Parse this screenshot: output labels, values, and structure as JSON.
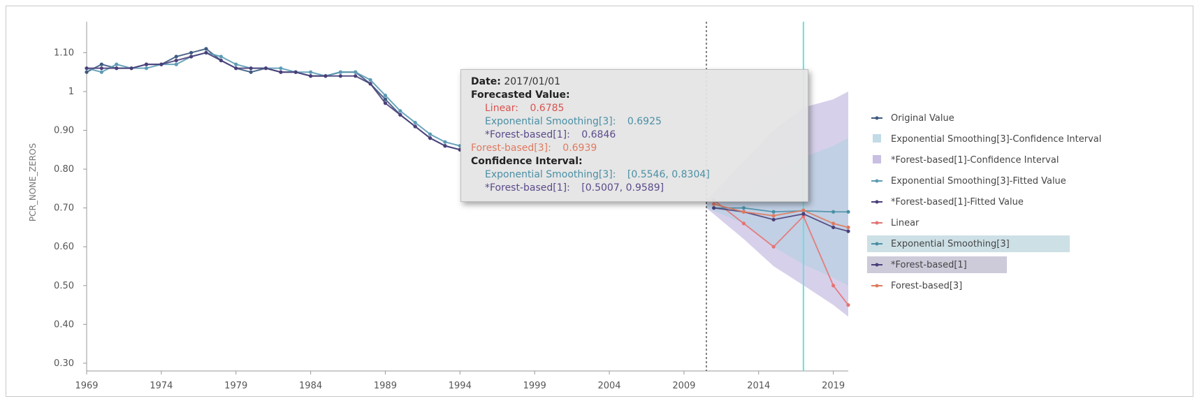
{
  "colors": {
    "original": "#3d5a80",
    "es_fitted": "#5b9bb5",
    "fb_fitted": "#4a3f7a",
    "linear": "#e57373",
    "es_forecast": "#4a8fa5",
    "fb1_forecast": "#4a3f7a",
    "fb3_forecast": "#e07a5f",
    "es_ci": "#aecfdf",
    "fb_ci": "#b7a9d9",
    "vline_dashed": "#333333",
    "vline_cyan": "#66e0e0"
  },
  "chart_data": {
    "type": "line",
    "xlabel": "",
    "ylabel": "PCR_NONE_ZEROS",
    "xlim": [
      1969,
      2020
    ],
    "ylim": [
      0.28,
      1.18
    ],
    "x_ticks": [
      "1969",
      "1974",
      "1979",
      "1984",
      "1989",
      "1994",
      "1999",
      "2004",
      "2009",
      "2014",
      "2019"
    ],
    "y_ticks": [
      "0.30",
      "0.40",
      "0.50",
      "0.60",
      "0.70",
      "0.80",
      "0.90",
      "1",
      "1.10"
    ],
    "forecast_start_year": 2010.5,
    "highlight_year": 2017,
    "series": [
      {
        "name": "Original Value",
        "key": "original",
        "x": [
          1969,
          1970,
          1971,
          1972,
          1973,
          1974,
          1975,
          1976,
          1977,
          1978,
          1979,
          1980,
          1981,
          1982,
          1983,
          1984,
          1985,
          1986,
          1987,
          1988,
          1989,
          1990,
          1991,
          1992,
          1993,
          1994
        ],
        "y": [
          1.05,
          1.07,
          1.06,
          1.06,
          1.07,
          1.07,
          1.09,
          1.1,
          1.11,
          1.08,
          1.06,
          1.05,
          1.06,
          1.05,
          1.05,
          1.04,
          1.04,
          1.05,
          1.05,
          1.02,
          0.98,
          0.94,
          0.91,
          0.88,
          0.86,
          0.85
        ]
      },
      {
        "name": "Exponential Smoothing[3]-Fitted Value",
        "key": "es_fitted",
        "x": [
          1969,
          1970,
          1971,
          1972,
          1973,
          1974,
          1975,
          1976,
          1977,
          1978,
          1979,
          1980,
          1981,
          1982,
          1983,
          1984,
          1985,
          1986,
          1987,
          1988,
          1989,
          1990,
          1991,
          1992,
          1993,
          1994
        ],
        "y": [
          1.06,
          1.05,
          1.07,
          1.06,
          1.06,
          1.07,
          1.07,
          1.09,
          1.1,
          1.09,
          1.07,
          1.06,
          1.06,
          1.06,
          1.05,
          1.05,
          1.04,
          1.05,
          1.05,
          1.03,
          0.99,
          0.95,
          0.92,
          0.89,
          0.87,
          0.86
        ]
      },
      {
        "name": "*Forest-based[1]-Fitted Value",
        "key": "fb_fitted",
        "x": [
          1969,
          1970,
          1971,
          1972,
          1973,
          1974,
          1975,
          1976,
          1977,
          1978,
          1979,
          1980,
          1981,
          1982,
          1983,
          1984,
          1985,
          1986,
          1987,
          1988,
          1989,
          1990,
          1991,
          1992,
          1993,
          1994
        ],
        "y": [
          1.06,
          1.06,
          1.06,
          1.06,
          1.07,
          1.07,
          1.08,
          1.09,
          1.1,
          1.08,
          1.06,
          1.06,
          1.06,
          1.05,
          1.05,
          1.04,
          1.04,
          1.04,
          1.04,
          1.02,
          0.97,
          0.94,
          0.91,
          0.88,
          0.86,
          0.85
        ]
      },
      {
        "name": "Linear",
        "key": "linear",
        "x": [
          2011,
          2013,
          2015,
          2017,
          2019,
          2020
        ],
        "y": [
          0.72,
          0.66,
          0.6,
          0.6785,
          0.5,
          0.45
        ]
      },
      {
        "name": "Exponential Smoothing[3]",
        "key": "es_forecast",
        "x": [
          2011,
          2013,
          2015,
          2017,
          2019,
          2020
        ],
        "y": [
          0.7,
          0.7,
          0.69,
          0.6925,
          0.69,
          0.69
        ]
      },
      {
        "name": "*Forest-based[1]",
        "key": "fb1_forecast",
        "x": [
          2011,
          2013,
          2015,
          2017,
          2019,
          2020
        ],
        "y": [
          0.7,
          0.69,
          0.67,
          0.6846,
          0.65,
          0.64
        ]
      },
      {
        "name": "Forest-based[3]",
        "key": "fb3_forecast",
        "x": [
          2011,
          2013,
          2015,
          2017,
          2019,
          2020
        ],
        "y": [
          0.71,
          0.69,
          0.68,
          0.6939,
          0.66,
          0.65
        ]
      }
    ],
    "intervals": [
      {
        "name": "*Forest-based[1]-Confidence Interval",
        "key": "fb_ci",
        "x": [
          2010.5,
          2013,
          2015,
          2017,
          2019,
          2020
        ],
        "lower": [
          0.7,
          0.62,
          0.55,
          0.5007,
          0.45,
          0.42
        ],
        "upper": [
          0.72,
          0.82,
          0.9,
          0.9589,
          0.98,
          1.0
        ]
      },
      {
        "name": "Exponential Smoothing[3]-Confidence Interval",
        "key": "es_ci",
        "x": [
          2010.5,
          2013,
          2015,
          2017,
          2019,
          2020
        ],
        "lower": [
          0.7,
          0.66,
          0.6,
          0.5546,
          0.52,
          0.5
        ],
        "upper": [
          0.71,
          0.74,
          0.79,
          0.8304,
          0.86,
          0.88
        ]
      }
    ],
    "legend": [
      {
        "label": "Original Value",
        "key": "original",
        "style": "line"
      },
      {
        "label": "Exponential Smoothing[3]-Confidence Interval",
        "key": "es_ci",
        "style": "box"
      },
      {
        "label": "*Forest-based[1]-Confidence Interval",
        "key": "fb_ci",
        "style": "box"
      },
      {
        "label": "Exponential Smoothing[3]-Fitted Value",
        "key": "es_fitted",
        "style": "line"
      },
      {
        "label": "*Forest-based[1]-Fitted Value",
        "key": "fb_fitted",
        "style": "line"
      },
      {
        "label": "Linear",
        "key": "linear",
        "style": "line"
      },
      {
        "label": "Exponential Smoothing[3]",
        "key": "es_forecast",
        "style": "line",
        "highlight": true
      },
      {
        "label": "*Forest-based[1]",
        "key": "fb1_forecast",
        "style": "line",
        "highlight": true
      },
      {
        "label": "Forest-based[3]",
        "key": "fb3_forecast",
        "style": "line"
      }
    ]
  },
  "tooltip": {
    "date_label": "Date:",
    "date_value": "2017/01/01",
    "forecast_header": "Forecasted Value:",
    "linear_label": "Linear:",
    "linear_value": "0.6785",
    "es_label": "Exponential Smoothing[3]:",
    "es_value": "0.6925",
    "fb1_label": "*Forest-based[1]:",
    "fb1_value": "0.6846",
    "fb3_label": "Forest-based[3]:",
    "fb3_value": "0.6939",
    "ci_header": "Confidence Interval:",
    "es_ci_label": "Exponential Smoothing[3]:",
    "es_ci_value": "[0.5546, 0.8304]",
    "fb1_ci_label": "*Forest-based[1]:",
    "fb1_ci_value": "[0.5007, 0.9589]"
  }
}
